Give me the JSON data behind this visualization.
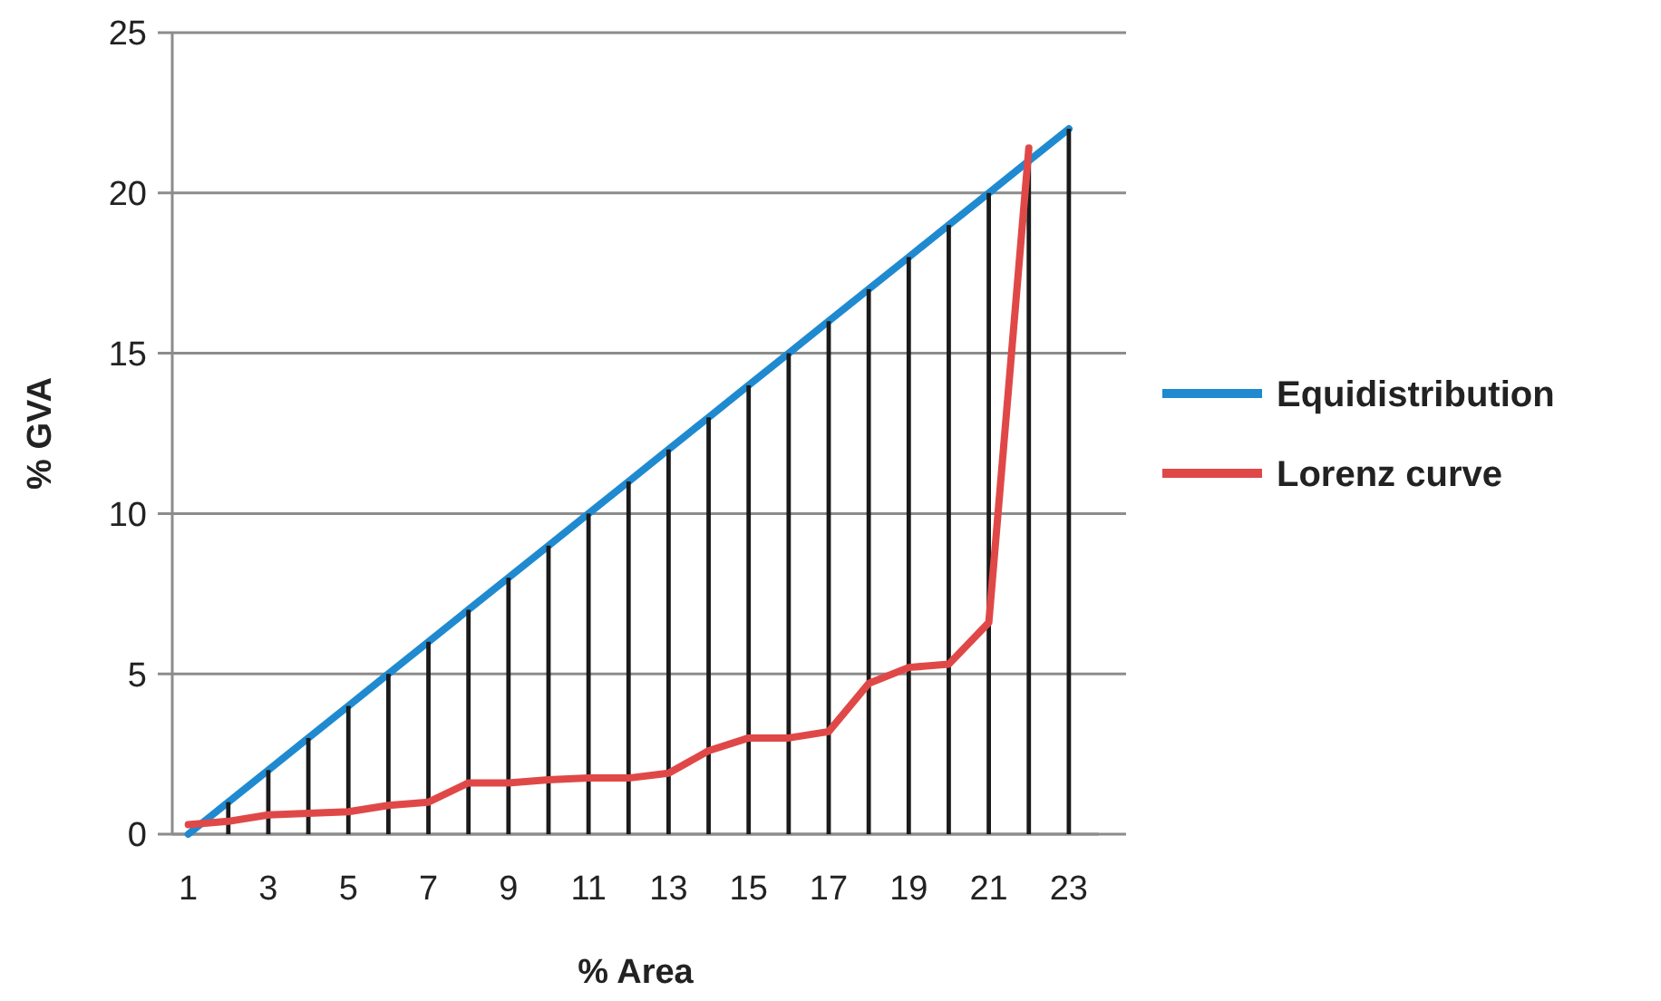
{
  "chart_data": {
    "type": "line",
    "xlabel": "% Area",
    "ylabel": "% GVA",
    "x": [
      1,
      2,
      3,
      4,
      5,
      6,
      7,
      8,
      9,
      10,
      11,
      12,
      13,
      14,
      15,
      16,
      17,
      18,
      19,
      20,
      21,
      22,
      23
    ],
    "xlim": [
      0.6,
      23.75
    ],
    "xticks": [
      1,
      3,
      5,
      7,
      9,
      11,
      13,
      15,
      17,
      19,
      21,
      23
    ],
    "ylim": [
      0,
      25
    ],
    "yticks": [
      0,
      5,
      10,
      15,
      20,
      25
    ],
    "grid": "y",
    "legend": "right",
    "marker": "none",
    "series": [
      {
        "name": "Equidistribution",
        "color": "#1f8ad0",
        "values": [
          0,
          1,
          2,
          3,
          4,
          5,
          6,
          7,
          8,
          9,
          10,
          11,
          12,
          13,
          14,
          15,
          16,
          17,
          18,
          19,
          20,
          21,
          22
        ]
      },
      {
        "type": "bar",
        "color": "#1a1a1a",
        "values": [
          0,
          1,
          2,
          3,
          4,
          5,
          6,
          7,
          8,
          9,
          10,
          11,
          12,
          13,
          14,
          15,
          16,
          17,
          18,
          19,
          20,
          21,
          22
        ]
      },
      {
        "name": "Lorenz curve",
        "color": "#e04848",
        "values": [
          0.3,
          0.4,
          0.6,
          0.65,
          0.7,
          0.9,
          1.0,
          1.6,
          1.6,
          1.7,
          1.75,
          1.75,
          1.9,
          2.6,
          3.0,
          3.0,
          3.2,
          4.7,
          5.2,
          5.3,
          6.6,
          21.4,
          null
        ]
      }
    ]
  }
}
